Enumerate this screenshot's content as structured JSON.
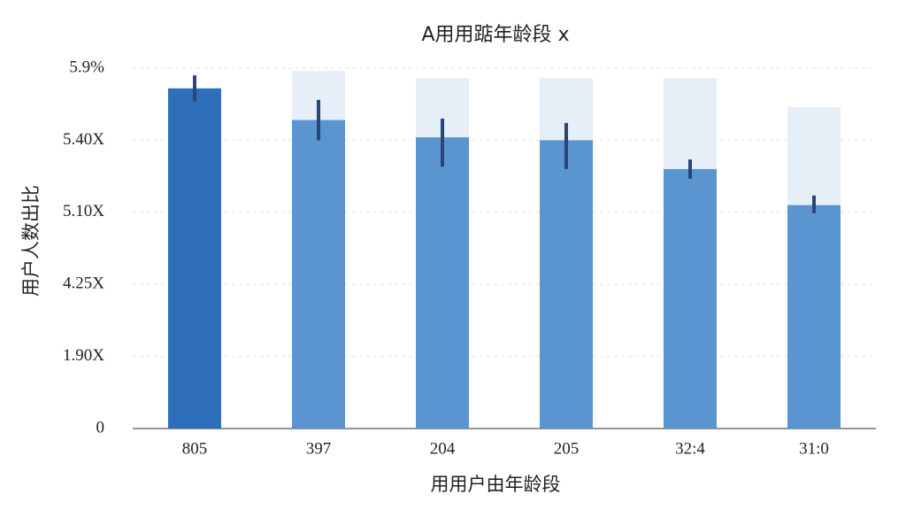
{
  "chart_data": {
    "type": "bar",
    "title": "A用用踮年龄段 x",
    "x_label": "用用户由年龄段",
    "y_label": "用户人数出比",
    "categories": [
      "805",
      "397",
      "204",
      "205",
      "32:4",
      "31:0"
    ],
    "series": [
      {
        "color": "#5b95cf",
        "values": [
          5.76,
          5.54,
          5.42,
          5.4,
          5.28,
          5.13
        ],
        "errors": [
          0.09,
          0.14,
          0.13,
          0.12,
          0.04,
          0.04
        ]
      }
    ],
    "highlight_color": "#2f6fba",
    "background_values": [
      null,
      5.88,
      5.83,
      5.83,
      5.83,
      5.63
    ],
    "background_color": "#e6eef8",
    "error_color": "#2b4577",
    "ylim": [
      0,
      5.9
    ],
    "yticks": [
      0,
      {
        "value": 1.9,
        "label": "1.90X"
      },
      {
        "value": 4.25,
        "label": "4.25X"
      },
      {
        "value": 5.1,
        "label": "5.10X"
      },
      {
        "value": 5.4,
        "label": "5.40X"
      },
      {
        "value": 5.9,
        "label": "5.9%"
      }
    ],
    "grid": true
  }
}
